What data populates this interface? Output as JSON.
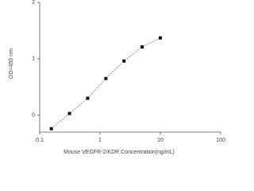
{
  "chart_data": {
    "type": "scatter",
    "x_label": "Mouse VEGFR-2/KDR  Concentration(ng/mL)",
    "y_label": "OD=450 nm",
    "x": [
      0.156,
      0.312,
      0.625,
      1.25,
      2.5,
      5,
      10
    ],
    "series": [
      {
        "color": "#111111",
        "values": [
          -0.24,
          0.03,
          0.3,
          0.65,
          0.96,
          1.21,
          1.37
        ]
      }
    ],
    "xscale": "log",
    "xlim": [
      0.1,
      100
    ],
    "xticks": [
      0.1,
      1,
      10,
      100
    ],
    "ylim": [
      -0.3,
      2
    ],
    "yticks": [
      0,
      1,
      2
    ],
    "grid": false,
    "trend_line": true
  }
}
